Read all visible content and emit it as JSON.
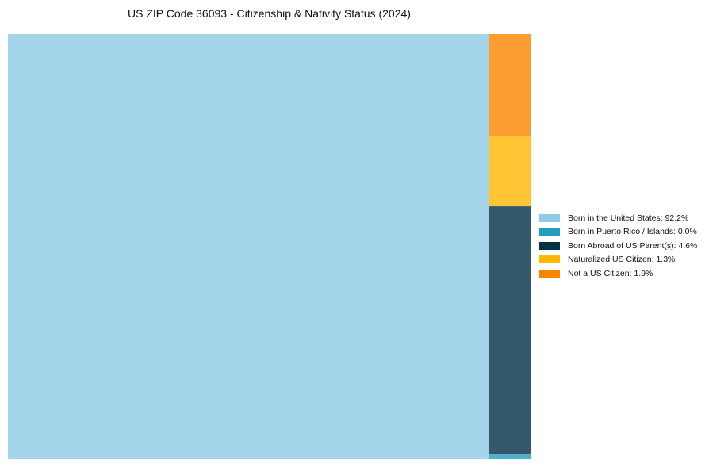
{
  "chart_data": {
    "type": "treemap",
    "title": "US ZIP Code 36093 - Citizenship & Nativity Status (2024)",
    "items": [
      {
        "label": "Born in the United States: 92.2%",
        "name": "Born in the United States",
        "value": 92.2,
        "color": "#8ecae6"
      },
      {
        "label": "Born in Puerto Rico / Islands: 0.0%",
        "name": "Born in Puerto Rico / Islands",
        "value": 0.0,
        "color": "#219ebc"
      },
      {
        "label": "Born Abroad of US Parent(s): 4.6%",
        "name": "Born Abroad of US Parent(s)",
        "value": 4.6,
        "color": "#023047"
      },
      {
        "label": "Naturalized US Citizen: 1.3%",
        "name": "Naturalized US Citizen",
        "value": 1.3,
        "color": "#ffb703"
      },
      {
        "label": "Not a US Citizen: 1.9%",
        "name": "Not a US Citizen",
        "value": 1.9,
        "color": "#fb8500"
      }
    ],
    "legend_position": "right"
  }
}
